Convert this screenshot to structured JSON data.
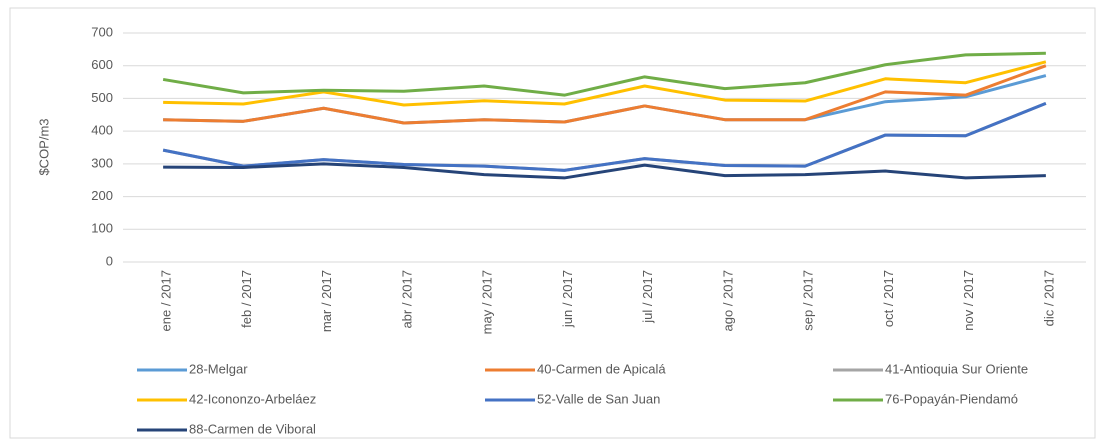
{
  "chart_data": {
    "type": "line",
    "y_label": "$COP/m3",
    "categories": [
      "ene / 2017",
      "feb / 2017",
      "mar / 2017",
      "abr / 2017",
      "may / 2017",
      "jun / 2017",
      "jul / 2017",
      "ago / 2017",
      "sep / 2017",
      "oct / 2017",
      "nov / 2017",
      "dic / 2017"
    ],
    "ylim": [
      0,
      700
    ],
    "yticks": [
      0,
      100,
      200,
      300,
      400,
      500,
      600,
      700
    ],
    "grid": true,
    "legend": "bottom",
    "series": [
      {
        "name": "28-Melgar",
        "color": "#5b9bd5",
        "values": [
          435,
          430,
          470,
          425,
          435,
          428,
          477,
          435,
          435,
          490,
          505,
          570
        ]
      },
      {
        "name": "40-Carmen de Apicalá",
        "color": "#ed7d31",
        "values": [
          435,
          430,
          470,
          425,
          435,
          428,
          477,
          435,
          435,
          520,
          510,
          600
        ]
      },
      {
        "name": "41-Antioquia Sur Oriente",
        "color": "#a5a5a5",
        "values": [
          342,
          293,
          313,
          298,
          293,
          280,
          316,
          295,
          293,
          388,
          386,
          485
        ]
      },
      {
        "name": "42-Icononzo-Arbeláez",
        "color": "#ffc000",
        "values": [
          488,
          483,
          520,
          480,
          493,
          483,
          538,
          495,
          492,
          560,
          548,
          612
        ]
      },
      {
        "name": "52-Valle de San Juan",
        "color": "#4472c4",
        "values": [
          342,
          293,
          313,
          298,
          293,
          280,
          316,
          295,
          293,
          388,
          386,
          485
        ]
      },
      {
        "name": "76-Popayán-Piendamó",
        "color": "#70ad47",
        "values": [
          558,
          517,
          525,
          522,
          538,
          510,
          566,
          530,
          548,
          603,
          633,
          638
        ]
      },
      {
        "name": "88-Carmen de Viboral",
        "color": "#264478",
        "values": [
          290,
          289,
          300,
          289,
          267,
          257,
          296,
          264,
          267,
          278,
          257,
          264
        ]
      }
    ]
  }
}
